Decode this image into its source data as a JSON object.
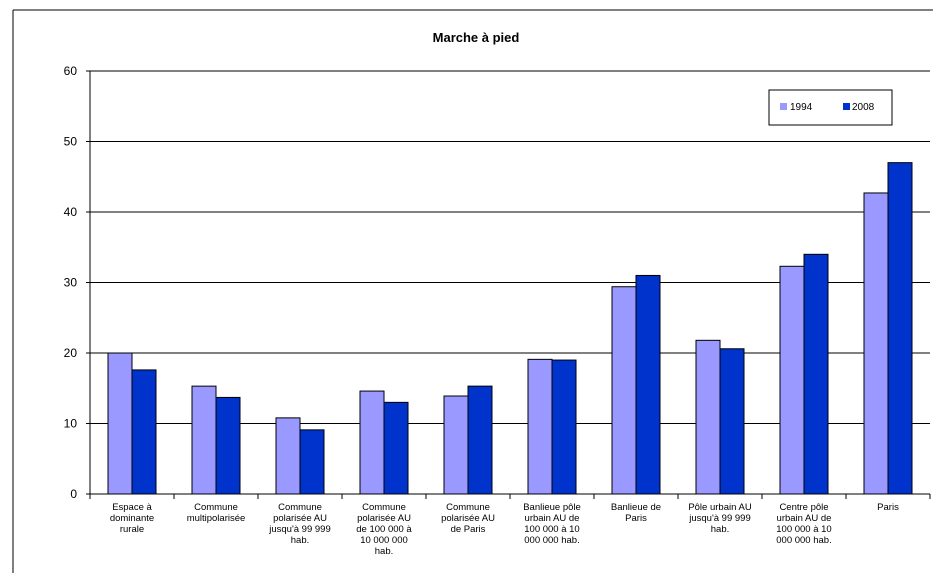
{
  "chart_data": {
    "type": "bar",
    "title": "Marche à pied",
    "xlabel": "",
    "ylabel": "",
    "ylim": [
      0,
      60
    ],
    "yticks": [
      0,
      10,
      20,
      30,
      40,
      50,
      60
    ],
    "grid": true,
    "legend_position": "top-right",
    "categories": [
      "Espace à dominante rurale",
      "Commune multipolarisée",
      "Commune polarisée AU jusqu'à 99 999 hab.",
      "Commune polarisée  AU de 100 000 à 10 000 000 hab.",
      "Commune polarisée AU de Paris",
      "Banlieue pôle urbain AU de 100 000 à 10 000 000 hab.",
      "Banlieue de Paris",
      "Pôle urbain AU jusqu'à 99 999 hab.",
      "Centre pôle urbain AU de 100 000 à 10 000 000 hab.",
      "Paris"
    ],
    "category_lines": [
      [
        "Espace à",
        "dominante",
        "rurale"
      ],
      [
        "Commune",
        "multipolarisée"
      ],
      [
        "Commune",
        "polarisée AU",
        "jusqu'à 99 999",
        "hab."
      ],
      [
        "Commune",
        "polarisée  AU",
        "de 100 000 à",
        "10 000 000",
        "hab."
      ],
      [
        "Commune",
        "polarisée AU",
        "de Paris"
      ],
      [
        "Banlieue pôle",
        "urbain AU de",
        "100 000 à 10",
        "000 000 hab."
      ],
      [
        "Banlieue de",
        "Paris"
      ],
      [
        "Pôle urbain AU",
        "jusqu'à 99 999",
        "hab."
      ],
      [
        "Centre pôle",
        "urbain AU de",
        "100 000 à 10",
        "000 000 hab."
      ],
      [
        "Paris"
      ]
    ],
    "series": [
      {
        "name": "1994",
        "color": "#9999ff",
        "values": [
          20,
          15.3,
          10.8,
          14.6,
          13.9,
          19.1,
          29.4,
          21.8,
          32.3,
          42.7
        ]
      },
      {
        "name": "2008",
        "color": "#0033cc",
        "values": [
          17.6,
          13.7,
          9.1,
          13.0,
          15.3,
          19.0,
          31.0,
          20.6,
          34.0,
          47.0
        ]
      }
    ]
  }
}
